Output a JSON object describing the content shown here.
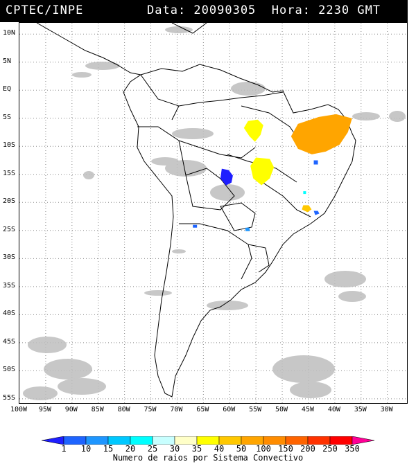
{
  "header": {
    "org": "CPTEC/INPE",
    "datetime": "Data: 20090305  Hora: 2230 GMT"
  },
  "axes": {
    "lat_labels": [
      "10N",
      "5N",
      "EQ",
      "5S",
      "10S",
      "15S",
      "20S",
      "25S",
      "30S",
      "35S",
      "40S",
      "45S",
      "50S",
      "55S"
    ],
    "lon_labels": [
      "100W",
      "95W",
      "90W",
      "85W",
      "80W",
      "75W",
      "70W",
      "65W",
      "60W",
      "55W",
      "50W",
      "45W",
      "40W",
      "35W",
      "30W"
    ]
  },
  "colorbar": {
    "labels": [
      "1",
      "10",
      "15",
      "20",
      "25",
      "30",
      "35",
      "40",
      "50",
      "100",
      "150",
      "200",
      "250",
      "350"
    ],
    "colors": [
      "#1e1eff",
      "#1e64ff",
      "#1e96ff",
      "#00c8ff",
      "#00ffff",
      "#c8ffff",
      "#ffffc8",
      "#ffff00",
      "#ffc800",
      "#ffa500",
      "#ff8c00",
      "#ff6400",
      "#ff3200",
      "#ff0000",
      "#ff0096"
    ],
    "title": "Numero de raios por Sistema Convectivo"
  },
  "map": {
    "projection": "lat-lon",
    "lon_range": [
      -100,
      -26
    ],
    "lat_range": [
      -56,
      12
    ],
    "gridlines": true,
    "cloud_color": "#bebebe",
    "coastline_color": "#000000",
    "systems": [
      {
        "name": "central-brazil-west",
        "lon": -56.5,
        "lat": -5.5,
        "color": "#ffff00"
      },
      {
        "name": "central-brazil-south",
        "lon": -55,
        "lat": -12,
        "color": "#ffff00"
      },
      {
        "name": "northeast-brazil",
        "lon": -47,
        "lat": -6,
        "color": "#ffa500"
      },
      {
        "name": "bolivia-blue",
        "lon": -61.5,
        "lat": -14,
        "color": "#1e1eff"
      },
      {
        "name": "minas-yellow",
        "lon": -46,
        "lat": -20.5,
        "color": "#ffc800"
      },
      {
        "name": "southeast-blue",
        "lon": -44,
        "lat": -21.5,
        "color": "#1e64ff"
      },
      {
        "name": "bahia-blue",
        "lon": -44,
        "lat": -12.5,
        "color": "#1e64ff"
      },
      {
        "name": "argentina-blue",
        "lon": -67,
        "lat": -24,
        "color": "#1e64ff"
      },
      {
        "name": "paraguay-blue",
        "lon": -57,
        "lat": -24.5,
        "color": "#1e96ff"
      },
      {
        "name": "goias-cyan",
        "lon": -46,
        "lat": -18,
        "color": "#00ffff"
      }
    ]
  }
}
